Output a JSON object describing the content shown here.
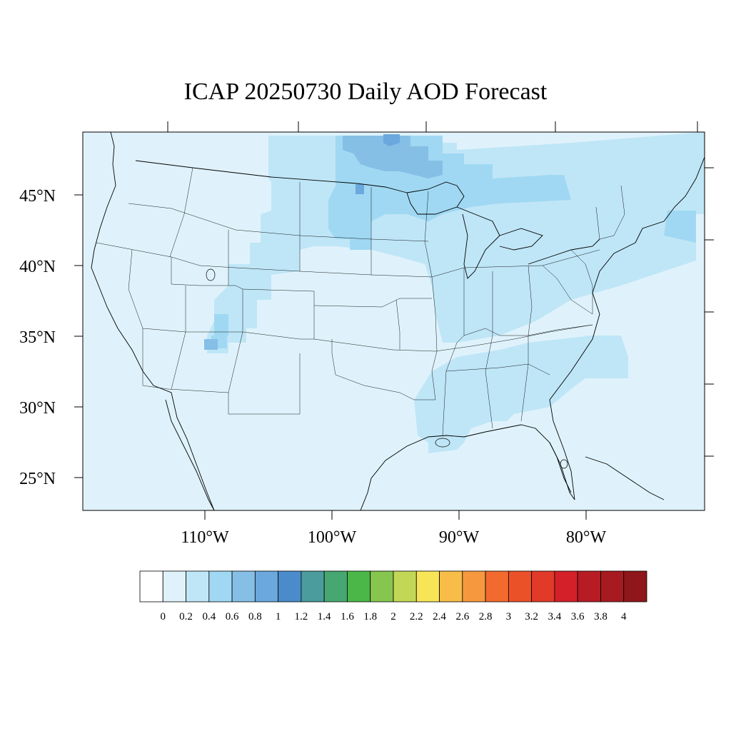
{
  "title": "ICAP 20250730 Daily AOD Forecast",
  "map": {
    "background_color": "#dff2fb",
    "lat_labels": [
      "45°N",
      "40°N",
      "35°N",
      "30°N",
      "25°N"
    ],
    "lon_labels": [
      "110°W",
      "100°W",
      "90°W",
      "80°W"
    ]
  },
  "colorbar": {
    "colors": [
      "#ffffff",
      "#dff2fb",
      "#bfe6f7",
      "#a0d8f3",
      "#85bfe6",
      "#6aa8dd",
      "#4a8ccb",
      "#4b9c9c",
      "#47a770",
      "#4bb748",
      "#86c64f",
      "#c3d757",
      "#f8e457",
      "#f7bd48",
      "#f6993e",
      "#f26a2e",
      "#eb5129",
      "#e13a29",
      "#d42029",
      "#b71c25",
      "#a71b20",
      "#8f161a"
    ],
    "labels": [
      "0",
      "0.2",
      "0.4",
      "0.6",
      "0.8",
      "1",
      "1.2",
      "1.4",
      "1.6",
      "1.8",
      "2",
      "2.2",
      "2.4",
      "2.6",
      "2.8",
      "3",
      "3.2",
      "3.4",
      "3.6",
      "3.8",
      "4"
    ]
  }
}
